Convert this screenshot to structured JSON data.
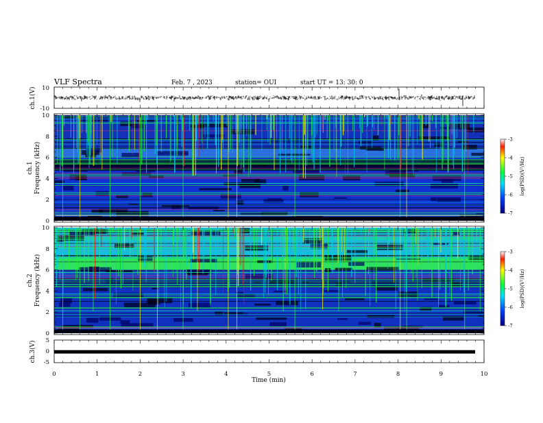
{
  "header": {
    "title": "VLF Spectra",
    "date": "Feb. 7 , 2023",
    "station": "station= OUI",
    "start_ut": "start UT =   13: 30: 0"
  },
  "chart_data": [
    {
      "type": "line",
      "name": "ch1-waveform",
      "ylabel": "ch.1(V)",
      "ylim": [
        -10,
        10
      ],
      "yticks": [
        "10",
        "-10"
      ],
      "xlim": [
        0,
        10
      ]
    },
    {
      "type": "heatmap",
      "name": "ch1-spectrogram",
      "ylabel": "ch.1\nFrequency (kHz)",
      "ylim": [
        0,
        10
      ],
      "yticks": [
        "0",
        "2",
        "4",
        "6",
        "8",
        "10"
      ],
      "xlim": [
        0,
        10
      ],
      "colorbar": {
        "label": "log(PSD)(V²/Hz)",
        "range": [
          -7,
          -3
        ],
        "ticks": [
          "-3",
          "-4",
          "-5",
          "-6",
          "-7"
        ]
      }
    },
    {
      "type": "heatmap",
      "name": "ch2-spectrogram",
      "ylabel": "ch.2\nFrequency (kHz)",
      "ylim": [
        0,
        10
      ],
      "yticks": [
        "0",
        "2",
        "4",
        "6",
        "8",
        "10"
      ],
      "xlim": [
        0,
        10
      ],
      "colorbar": {
        "label": "log(PSD)(V²/Hz)",
        "range": [
          -7,
          -3
        ],
        "ticks": [
          "-3",
          "-4",
          "-5",
          "-6",
          "-7"
        ]
      }
    },
    {
      "type": "line",
      "name": "ch3-waveform",
      "ylabel": "ch.3(V)",
      "ylim": [
        -5,
        5
      ],
      "yticks": [
        "5",
        "0",
        "-5"
      ],
      "xlim": [
        0,
        10
      ],
      "value": -0.2
    }
  ],
  "xaxis": {
    "label": "Time (min)",
    "ticks": [
      "0",
      "1",
      "2",
      "3",
      "4",
      "5",
      "6",
      "7",
      "8",
      "9",
      "10"
    ]
  },
  "labels": {
    "ch1_wave": "ch.1(V)",
    "spec_ch1": "ch.1",
    "spec_ch2": "ch.2",
    "freq": "Frequency (kHz)",
    "ch3_wave": "ch.3(V)",
    "colorbar": "log(PSD)(V²/Hz)"
  },
  "colors": {
    "bg": "#000000",
    "dark_blue": "#00008b",
    "blue": "#1030d0",
    "cyan": "#00c8e8",
    "green": "#20f040",
    "yellow": "#f0f000",
    "red": "#f02020"
  }
}
